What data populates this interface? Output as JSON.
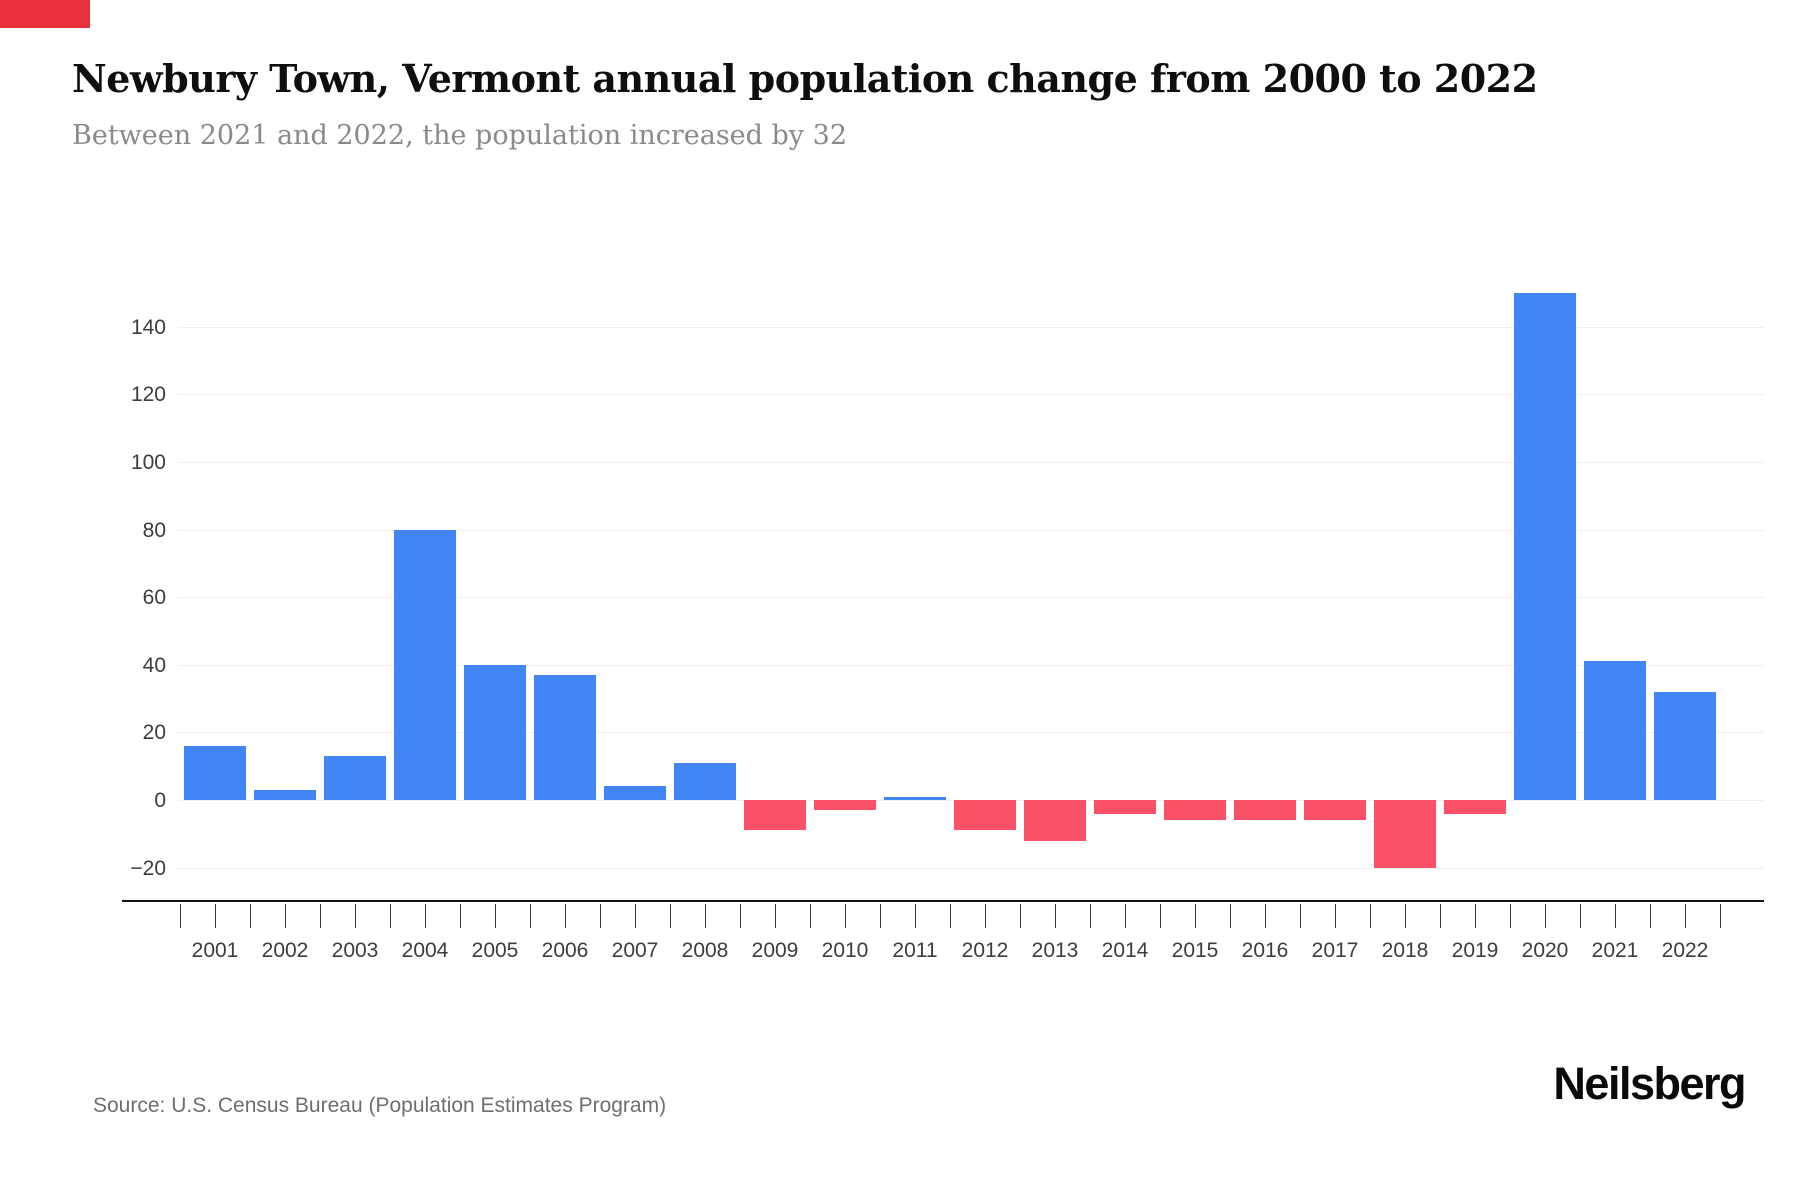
{
  "header": {
    "title": "Newbury Town, Vermont annual population change from 2000 to 2022",
    "subtitle": "Between 2021 and 2022, the population increased by 32"
  },
  "footer": {
    "source": "Source: U.S. Census Bureau (Population Estimates Program)",
    "brand": "Neilsberg"
  },
  "accents": {
    "corner_mark_color": "#e8313d"
  },
  "chart_data": {
    "type": "bar",
    "title": "Newbury Town, Vermont annual population change from 2000 to 2022",
    "xlabel": "",
    "ylabel": "",
    "categories": [
      "2001",
      "2002",
      "2003",
      "2004",
      "2005",
      "2006",
      "2007",
      "2008",
      "2009",
      "2010",
      "2011",
      "2012",
      "2013",
      "2014",
      "2015",
      "2016",
      "2017",
      "2018",
      "2019",
      "2020",
      "2021",
      "2022"
    ],
    "values": [
      16,
      3,
      13,
      80,
      40,
      37,
      4,
      11,
      -9,
      -3,
      1,
      -9,
      -12,
      -4,
      -6,
      -6,
      -6,
      -20,
      -4,
      150,
      41,
      32
    ],
    "ylim": [
      -20,
      150
    ],
    "yticks": [
      {
        "value": 140,
        "label": "140"
      },
      {
        "value": 120,
        "label": "120"
      },
      {
        "value": 100,
        "label": "100"
      },
      {
        "value": 80,
        "label": "80"
      },
      {
        "value": 60,
        "label": "60"
      },
      {
        "value": 40,
        "label": "40"
      },
      {
        "value": 20,
        "label": "20"
      },
      {
        "value": 0,
        "label": "0"
      },
      {
        "value": -20,
        "label": "−20"
      }
    ],
    "grid": true,
    "legend": "none",
    "positive_color": "#4285f4",
    "negative_color": "#fa5068"
  }
}
